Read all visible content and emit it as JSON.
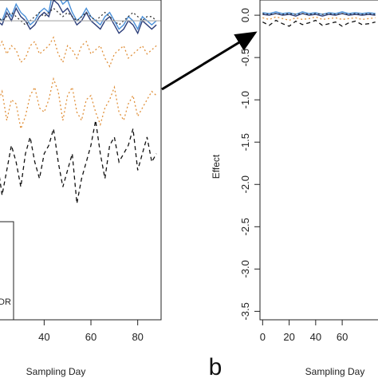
{
  "chart_data": [
    {
      "type": "line",
      "panel": "left",
      "xlabel": "Sampling Day",
      "x_ticks": [
        40,
        60,
        80
      ],
      "xlim": [
        16,
        90
      ],
      "ylim": [
        -3.6,
        0.25
      ],
      "x": [
        16,
        18,
        20,
        22,
        24,
        26,
        28,
        30,
        32,
        34,
        36,
        38,
        40,
        42,
        44,
        46,
        48,
        50,
        52,
        54,
        56,
        58,
        60,
        62,
        64,
        66,
        68,
        70,
        72,
        74,
        76,
        78,
        80,
        82,
        84,
        86,
        88
      ],
      "reference_line": {
        "y": 0,
        "color": "#aaaaaa"
      },
      "legend": {
        "visible_text": "DR"
      },
      "series": [
        {
          "color": "#4a90d9",
          "style": "solid",
          "values": [
            0.05,
            0.1,
            0.05,
            0.0,
            0.15,
            0.05,
            0.2,
            0.1,
            0.05,
            -0.05,
            0.0,
            0.1,
            0.15,
            0.1,
            0.4,
            0.3,
            0.2,
            0.25,
            0.1,
            0.0,
            0.05,
            0.15,
            0.05,
            0.0,
            -0.05,
            0.05,
            0.1,
            0.0,
            -0.1,
            -0.05,
            0.05,
            0.0,
            -0.1,
            0.05,
            0.0,
            -0.05,
            0.0
          ]
        },
        {
          "color": "#2c3e7a",
          "style": "solid",
          "values": [
            0.0,
            0.05,
            0.0,
            -0.05,
            0.1,
            0.0,
            0.15,
            0.05,
            0.0,
            -0.1,
            -0.05,
            0.05,
            0.1,
            0.05,
            0.25,
            0.2,
            0.1,
            0.15,
            0.05,
            -0.05,
            0.0,
            0.1,
            0.0,
            -0.05,
            -0.1,
            0.0,
            0.05,
            -0.05,
            -0.15,
            -0.1,
            0.0,
            -0.05,
            -0.15,
            0.0,
            -0.05,
            -0.1,
            -0.05
          ]
        },
        {
          "color": "#333333",
          "style": "dotted",
          "values": [
            0.05,
            0.0,
            0.05,
            0.0,
            0.05,
            0.1,
            0.05,
            0.0,
            -0.05,
            0.0,
            0.05,
            0.1,
            0.05,
            0.1,
            0.15,
            0.1,
            0.05,
            0.1,
            0.05,
            0.0,
            0.05,
            0.1,
            0.05,
            0.0,
            0.05,
            0.1,
            0.05,
            0.0,
            -0.05,
            0.0,
            0.05,
            0.1,
            0.05,
            0.0,
            0.05,
            0.05,
            0.0
          ]
        },
        {
          "color": "#e0903a",
          "style": "dotted",
          "values": [
            -0.3,
            -0.4,
            -0.35,
            -0.25,
            -0.4,
            -0.3,
            -0.35,
            -0.5,
            -0.45,
            -0.3,
            -0.25,
            -0.4,
            -0.35,
            -0.3,
            -0.2,
            -0.4,
            -0.5,
            -0.3,
            -0.35,
            -0.45,
            -0.3,
            -0.25,
            -0.4,
            -0.35,
            -0.3,
            -0.45,
            -0.55,
            -0.4,
            -0.35,
            -0.3,
            -0.45,
            -0.4,
            -0.35,
            -0.3,
            -0.4,
            -0.35,
            -0.3
          ]
        },
        {
          "color": "#e0903a",
          "style": "dotted",
          "values": [
            -0.9,
            -1.1,
            -1.0,
            -0.85,
            -1.2,
            -0.95,
            -1.0,
            -1.3,
            -1.15,
            -0.9,
            -0.8,
            -1.05,
            -1.1,
            -0.95,
            -0.7,
            -0.85,
            -1.2,
            -0.9,
            -0.8,
            -1.1,
            -1.2,
            -0.95,
            -0.9,
            -1.1,
            -1.25,
            -1.05,
            -0.95,
            -0.8,
            -1.1,
            -1.2,
            -1.0,
            -0.9,
            -1.15,
            -1.05,
            -0.95,
            -0.85,
            -0.9
          ]
        },
        {
          "color": "#111111",
          "style": "dashed",
          "values": [
            -1.6,
            -1.9,
            -1.7,
            -2.1,
            -1.8,
            -1.5,
            -1.7,
            -2.0,
            -1.6,
            -1.4,
            -1.7,
            -1.9,
            -1.6,
            -1.5,
            -1.3,
            -1.7,
            -2.0,
            -1.8,
            -1.6,
            -2.2,
            -1.9,
            -1.7,
            -1.5,
            -1.2,
            -1.6,
            -1.9,
            -1.5,
            -1.4,
            -1.7,
            -1.6,
            -1.5,
            -1.3,
            -1.8,
            -1.6,
            -1.4,
            -1.7,
            -1.6
          ]
        }
      ]
    },
    {
      "type": "line",
      "panel": "b",
      "panel_label": "b",
      "xlabel": "Sampling Day",
      "ylabel": "Effect",
      "x_ticks": [
        0,
        20,
        40,
        60
      ],
      "y_ticks": [
        0.0,
        -0.5,
        -1.0,
        -1.5,
        -2.0,
        -2.5,
        -3.0,
        -3.5
      ],
      "y_tick_labels": [
        "0.0",
        "-0.5",
        "-1.0",
        "-1.5",
        "-2.0",
        "-2.5",
        "-3.0",
        "-3.5"
      ],
      "xlim": [
        -2,
        87
      ],
      "ylim": [
        -3.6,
        0.18
      ],
      "x": [
        0,
        5,
        10,
        15,
        20,
        25,
        30,
        35,
        40,
        45,
        50,
        55,
        60,
        65,
        70,
        75,
        80,
        85
      ],
      "series": [
        {
          "color": "#4a90d9",
          "style": "solid",
          "values": [
            0.03,
            0.02,
            0.04,
            0.02,
            0.03,
            0.01,
            0.04,
            0.02,
            0.03,
            0.01,
            0.03,
            0.02,
            0.04,
            0.02,
            0.03,
            0.02,
            0.03,
            0.02
          ]
        },
        {
          "color": "#2c3e7a",
          "style": "solid",
          "values": [
            0.01,
            0.0,
            0.02,
            0.0,
            0.01,
            -0.01,
            0.02,
            0.0,
            0.01,
            -0.01,
            0.01,
            0.0,
            0.02,
            0.0,
            0.01,
            0.0,
            0.01,
            0.0
          ]
        },
        {
          "color": "#333333",
          "style": "dotted",
          "values": [
            0.02,
            0.01,
            0.02,
            0.01,
            0.02,
            0.01,
            0.02,
            0.01,
            0.02,
            0.01,
            0.02,
            0.01,
            0.02,
            0.01,
            0.02,
            0.01,
            0.02,
            0.01
          ]
        },
        {
          "color": "#e0903a",
          "style": "dotted",
          "values": [
            -0.03,
            -0.05,
            -0.02,
            -0.04,
            -0.06,
            -0.03,
            -0.05,
            -0.04,
            -0.02,
            -0.05,
            -0.04,
            -0.03,
            -0.05,
            -0.04,
            -0.03,
            -0.05,
            -0.04,
            -0.03
          ]
        },
        {
          "color": "#111111",
          "style": "dashed",
          "values": [
            -0.08,
            -0.12,
            -0.06,
            -0.1,
            -0.13,
            -0.07,
            -0.11,
            -0.09,
            -0.06,
            -0.12,
            -0.1,
            -0.08,
            -0.13,
            -0.09,
            -0.07,
            -0.11,
            -0.1,
            -0.08
          ]
        }
      ]
    }
  ]
}
